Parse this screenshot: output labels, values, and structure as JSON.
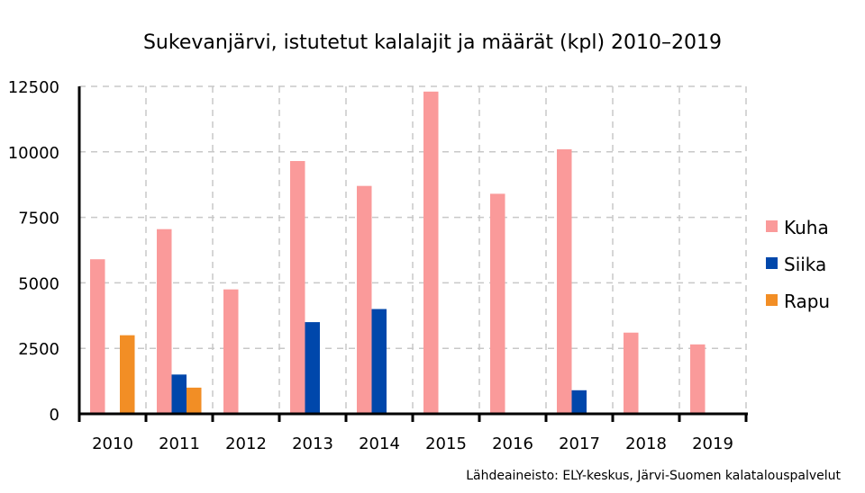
{
  "chart_data": {
    "type": "bar",
    "title": "Sukevanjärvi, istutetut kalalajit ja määrät (kpl) 2010–2019",
    "xlabel": "",
    "ylabel": "",
    "ylim": [
      0,
      12500
    ],
    "yticks": [
      "0",
      "2500",
      "5000",
      "7500",
      "10000",
      "12500"
    ],
    "ytick_values": [
      0,
      2500,
      5000,
      7500,
      10000,
      12500
    ],
    "categories": [
      "2010",
      "2011",
      "2012",
      "2013",
      "2014",
      "2015",
      "2016",
      "2017",
      "2018",
      "2019"
    ],
    "series": [
      {
        "name": "Kuha",
        "color": "#fa9a9a",
        "values": [
          5900,
          7050,
          4750,
          9650,
          8700,
          12300,
          8400,
          10100,
          3100,
          2650
        ]
      },
      {
        "name": "Siika",
        "color": "#0047ab",
        "values": [
          0,
          1500,
          0,
          3500,
          4000,
          0,
          0,
          900,
          0,
          0
        ]
      },
      {
        "name": "Rapu",
        "color": "#f28e25",
        "values": [
          3000,
          1000,
          0,
          0,
          0,
          0,
          0,
          0,
          0,
          0
        ]
      }
    ],
    "grid": true,
    "legend_position": "right",
    "source": "Lähdeaineisto: ELY-keskus, Järvi-Suomen kalatalouspalvelut"
  }
}
